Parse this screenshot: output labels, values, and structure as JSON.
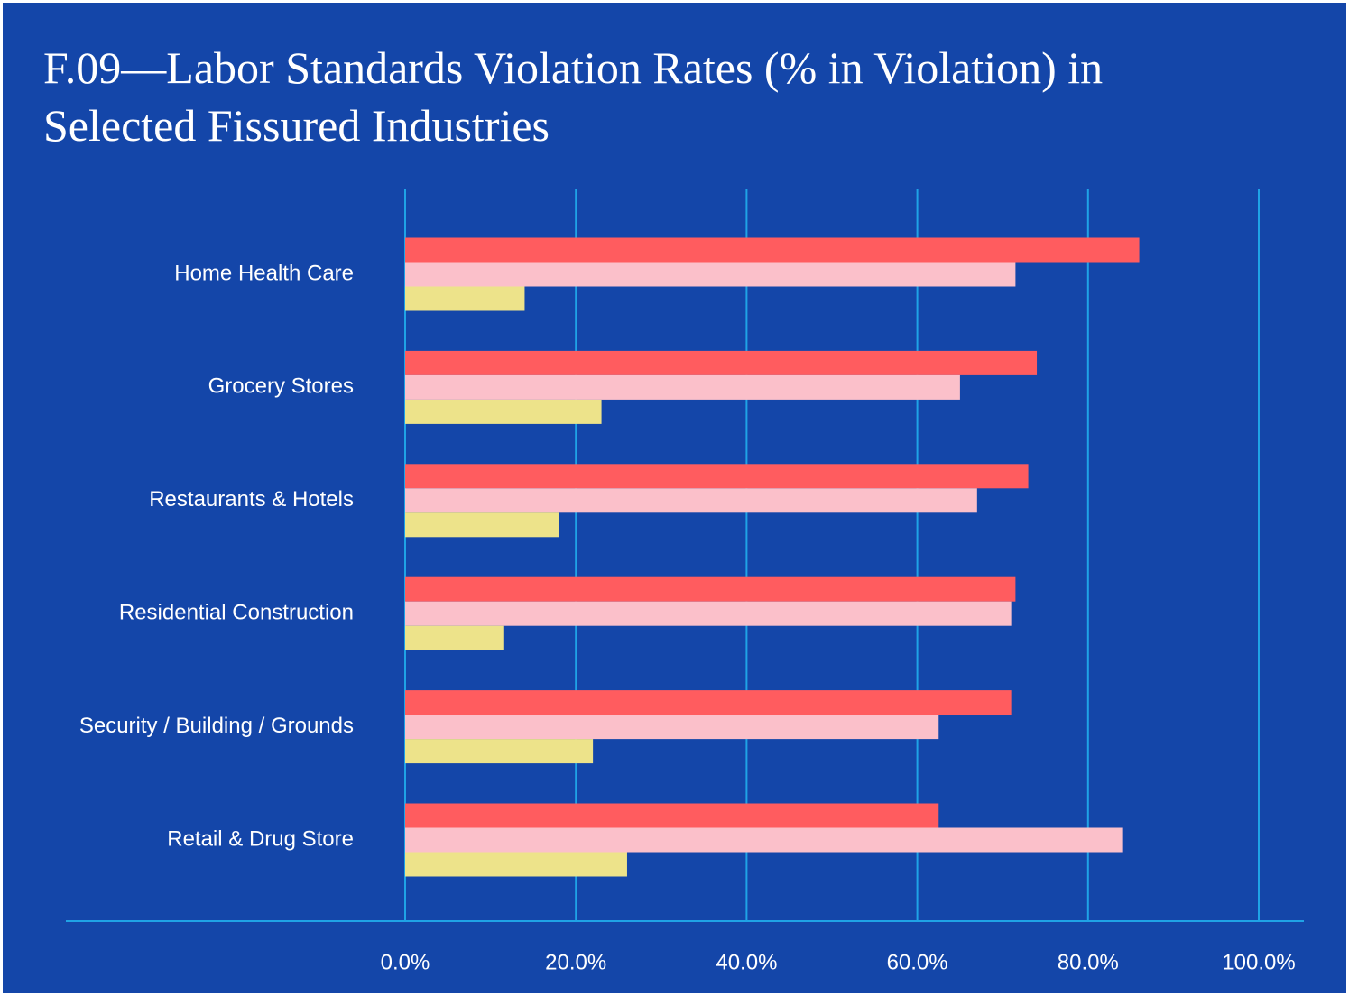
{
  "chart_data": {
    "type": "hbar",
    "title": "F.09—Labor Standards Violation Rates (% in Violation) in Selected Fissured Industries",
    "categories": [
      "Home Health Care",
      "Grocery Stores",
      "Restaurants & Hotels",
      "Residential Construction",
      "Security / Building / Grounds",
      "Retail & Drug Store"
    ],
    "series": [
      {
        "color": "#ff5c5f",
        "values": [
          86,
          74,
          73,
          71.5,
          71,
          62.5
        ]
      },
      {
        "color": "#fbc0ca",
        "values": [
          71.5,
          65,
          67,
          71,
          62.5,
          84
        ]
      },
      {
        "color": "#ede38a",
        "values": [
          14,
          23,
          18,
          11.5,
          22,
          26
        ]
      }
    ],
    "xlim": [
      0,
      100
    ],
    "xticks": [
      {
        "value": 0,
        "label": "0.0%"
      },
      {
        "value": 20,
        "label": "20.0%"
      },
      {
        "value": 40,
        "label": "40.0%"
      },
      {
        "value": 60,
        "label": "60.0%"
      },
      {
        "value": 80,
        "label": "80.0%"
      },
      {
        "value": 100,
        "label": "100.0%"
      }
    ],
    "grid": true
  }
}
